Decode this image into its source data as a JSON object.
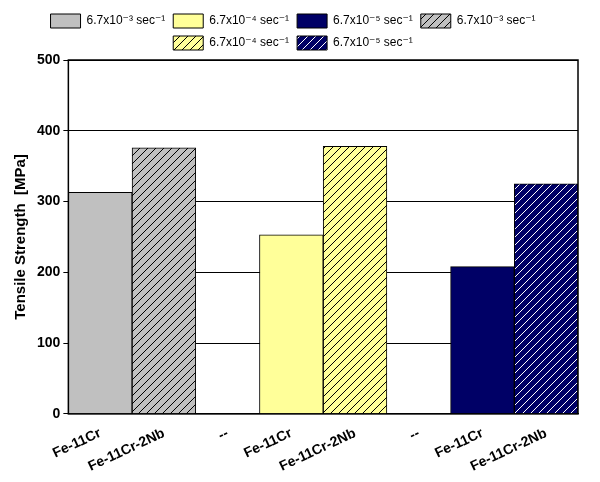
{
  "chart_data": {
    "type": "bar",
    "y_label": "Tensile Strength  [MPa]",
    "categories": [
      "Fe-11Cr",
      "Fe-11Cr-2Nb",
      "--",
      "Fe-11Cr",
      "Fe-11Cr-2Nb",
      "--",
      "Fe-11Cr",
      "Fe-11Cr-2Nb"
    ],
    "series": [
      {
        "name": "6.7x10⁻³ sec⁻¹",
        "color": "#c0c0c0",
        "values": [
          313,
          null,
          null,
          null,
          null,
          null,
          null,
          null
        ]
      },
      {
        "name": "6.7x10⁻⁴ sec⁻¹",
        "color": "#ffff99",
        "values": [
          null,
          null,
          null,
          253,
          null,
          null,
          null,
          null
        ]
      },
      {
        "name": "6.7x10⁻⁵ sec⁻¹",
        "color": "#000066",
        "values": [
          null,
          null,
          null,
          null,
          null,
          null,
          208,
          null
        ]
      },
      {
        "name": "6.7x10⁻³ sec⁻¹",
        "color": "#c0c0c0",
        "values": [
          null,
          376,
          null,
          null,
          null,
          null,
          null,
          null
        ]
      },
      {
        "name": "6.7x10⁻⁴ sec⁻¹",
        "color": "#ffff99",
        "values": [
          null,
          null,
          null,
          null,
          378,
          null,
          null,
          null
        ]
      },
      {
        "name": "6.7x10⁻⁵ sec⁻¹",
        "color": "#000066",
        "values": [
          null,
          null,
          null,
          null,
          null,
          null,
          null,
          325
        ]
      }
    ],
    "ylim": [
      0,
      500
    ],
    "yticks": [
      0,
      100,
      200,
      300,
      400,
      500
    ],
    "grid": true,
    "legend": "top"
  }
}
